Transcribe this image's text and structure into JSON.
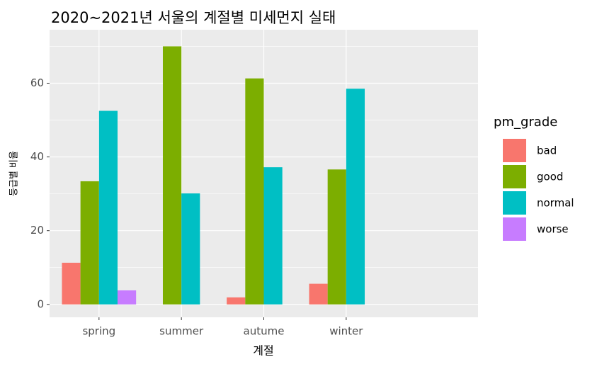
{
  "chart_data": {
    "type": "bar",
    "title": "2020~2021년 서울의 계절별 미세먼지 실태",
    "x_label": "계절",
    "y_label": "등급별 비율",
    "legend_title": "pm_grade",
    "categories": [
      "spring",
      "summer",
      "autume",
      "winter"
    ],
    "series": [
      {
        "name": "bad",
        "color": "#F8766D",
        "values": [
          11.3,
          null,
          1.9,
          5.6
        ]
      },
      {
        "name": "good",
        "color": "#7CAE00",
        "values": [
          33.4,
          70.0,
          61.3,
          36.6
        ]
      },
      {
        "name": "normal",
        "color": "#00BFC4",
        "values": [
          52.5,
          30.1,
          37.2,
          58.5
        ]
      },
      {
        "name": "worse",
        "color": "#C77CFF",
        "values": [
          3.8,
          null,
          null,
          null
        ]
      }
    ],
    "ylim": [
      -3.5,
      74.5
    ],
    "yticks": [
      0,
      20,
      40,
      60
    ],
    "grid": true
  }
}
